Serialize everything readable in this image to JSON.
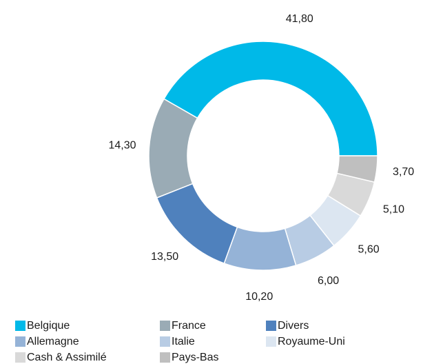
{
  "chart_data": {
    "type": "donut",
    "categories": [
      "Belgique",
      "France",
      "Divers",
      "Allemagne",
      "Italie",
      "Royaume-Uni",
      "Cash & Assimilé",
      "Pays-Bas"
    ],
    "values": [
      41.8,
      14.3,
      13.5,
      10.2,
      6.0,
      5.6,
      5.1,
      3.7
    ],
    "value_labels": [
      "41,80",
      "14,30",
      "13,50",
      "10,20",
      "6,00",
      "5,60",
      "5,10",
      "3,70"
    ],
    "colors": [
      "#00b9e8",
      "#9aabb5",
      "#4f81bd",
      "#95b3d7",
      "#b8cce4",
      "#dce6f1",
      "#d9d9d9",
      "#bfbfbf"
    ],
    "legend": "bottom"
  }
}
